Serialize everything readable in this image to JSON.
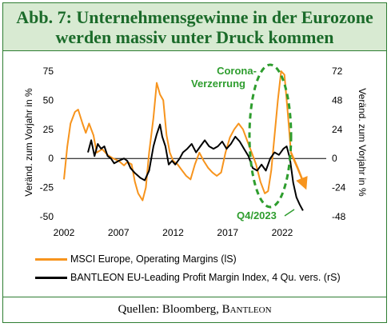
{
  "title": {
    "line1": "Abb. 7: Unternehmensgewinne in der Eurozone",
    "line2": "werden massiv unter Druck kommen"
  },
  "footer": {
    "prefix": "Quellen: Bloomberg, ",
    "brand": "Bantleon"
  },
  "chart_data": {
    "type": "line",
    "ylabel": "Veränd. zum Vorjahr in %",
    "y2label": "Veränd. zum Vorjahr in %",
    "ylim": [
      -50,
      75
    ],
    "y2lim": [
      -48,
      72
    ],
    "xlim": [
      2002,
      2024.5
    ],
    "y_ticks": [
      {
        "value": 75,
        "label": "75"
      },
      {
        "value": 50,
        "label": "50"
      },
      {
        "value": 25,
        "label": "25"
      },
      {
        "value": 0,
        "label": "0"
      },
      {
        "value": -25,
        "label": "-25"
      },
      {
        "value": -50,
        "label": "-50"
      }
    ],
    "y2_ticks": [
      {
        "value": 72,
        "label": "72"
      },
      {
        "value": 48,
        "label": "48"
      },
      {
        "value": 24,
        "label": "24"
      },
      {
        "value": 0,
        "label": "0"
      },
      {
        "value": -24,
        "label": "-24"
      },
      {
        "value": -48,
        "label": "-48"
      }
    ],
    "x_ticks": [
      {
        "value": 2002,
        "label": "2002"
      },
      {
        "value": 2007,
        "label": "2007"
      },
      {
        "value": 2012,
        "label": "2012"
      },
      {
        "value": 2017,
        "label": "2017"
      },
      {
        "value": 2022,
        "label": "2022"
      }
    ],
    "series": [
      {
        "name": "MSCI Europe, Operating Margins (lS)",
        "axis": "left",
        "color": "#f7941d",
        "points": [
          [
            2002.0,
            -18
          ],
          [
            2002.3,
            10
          ],
          [
            2002.6,
            30
          ],
          [
            2003.0,
            40
          ],
          [
            2003.3,
            42
          ],
          [
            2003.7,
            30
          ],
          [
            2004.0,
            22
          ],
          [
            2004.3,
            30
          ],
          [
            2004.7,
            20
          ],
          [
            2005.0,
            5
          ],
          [
            2005.5,
            8
          ],
          [
            2006.0,
            3
          ],
          [
            2006.5,
            0
          ],
          [
            2007.0,
            -2
          ],
          [
            2007.5,
            -6
          ],
          [
            2007.8,
            -3
          ],
          [
            2008.2,
            -5
          ],
          [
            2008.5,
            -20
          ],
          [
            2008.8,
            -30
          ],
          [
            2009.2,
            -36
          ],
          [
            2009.5,
            -25
          ],
          [
            2009.8,
            5
          ],
          [
            2010.2,
            35
          ],
          [
            2010.5,
            65
          ],
          [
            2010.8,
            55
          ],
          [
            2011.1,
            50
          ],
          [
            2011.4,
            20
          ],
          [
            2011.7,
            5
          ],
          [
            2012.0,
            -2
          ],
          [
            2012.4,
            -5
          ],
          [
            2012.8,
            -10
          ],
          [
            2013.2,
            -15
          ],
          [
            2013.6,
            -18
          ],
          [
            2014.0,
            -5
          ],
          [
            2014.4,
            5
          ],
          [
            2014.8,
            -2
          ],
          [
            2015.2,
            -8
          ],
          [
            2015.6,
            -12
          ],
          [
            2016.0,
            -15
          ],
          [
            2016.4,
            -12
          ],
          [
            2016.8,
            5
          ],
          [
            2017.2,
            18
          ],
          [
            2017.6,
            25
          ],
          [
            2018.0,
            30
          ],
          [
            2018.4,
            25
          ],
          [
            2018.8,
            15
          ],
          [
            2019.2,
            5
          ],
          [
            2019.6,
            -5
          ],
          [
            2020.0,
            -20
          ],
          [
            2020.4,
            -30
          ],
          [
            2020.7,
            -28
          ],
          [
            2021.0,
            -10
          ],
          [
            2021.3,
            20
          ],
          [
            2021.6,
            50
          ],
          [
            2021.9,
            75
          ],
          [
            2022.2,
            72
          ],
          [
            2022.5,
            40
          ],
          [
            2022.8,
            5
          ]
        ]
      },
      {
        "name": "BANTLEON EU-Leading Profit Margin Index, 4 Qu. vers. (rS)",
        "axis": "right",
        "color": "#000000",
        "points": [
          [
            2004.2,
            5
          ],
          [
            2004.5,
            15
          ],
          [
            2004.8,
            2
          ],
          [
            2005.1,
            12
          ],
          [
            2005.4,
            8
          ],
          [
            2005.7,
            10
          ],
          [
            2006.0,
            2
          ],
          [
            2006.3,
            0
          ],
          [
            2006.6,
            -4
          ],
          [
            2007.0,
            -2
          ],
          [
            2007.5,
            0
          ],
          [
            2007.8,
            -2
          ],
          [
            2008.1,
            -8
          ],
          [
            2008.5,
            -12
          ],
          [
            2009.0,
            -16
          ],
          [
            2009.4,
            -18
          ],
          [
            2009.8,
            -10
          ],
          [
            2010.2,
            10
          ],
          [
            2010.5,
            20
          ],
          [
            2010.8,
            28
          ],
          [
            2011.0,
            18
          ],
          [
            2011.3,
            10
          ],
          [
            2011.6,
            -5
          ],
          [
            2011.9,
            -2
          ],
          [
            2012.2,
            -5
          ],
          [
            2012.6,
            0
          ],
          [
            2012.9,
            5
          ],
          [
            2013.3,
            8
          ],
          [
            2013.7,
            12
          ],
          [
            2014.1,
            5
          ],
          [
            2014.5,
            10
          ],
          [
            2014.9,
            15
          ],
          [
            2015.3,
            10
          ],
          [
            2015.7,
            8
          ],
          [
            2016.1,
            10
          ],
          [
            2016.5,
            14
          ],
          [
            2016.9,
            8
          ],
          [
            2017.3,
            12
          ],
          [
            2017.7,
            18
          ],
          [
            2018.1,
            14
          ],
          [
            2018.5,
            8
          ],
          [
            2018.9,
            2
          ],
          [
            2019.3,
            -8
          ],
          [
            2019.7,
            -10
          ],
          [
            2020.1,
            -5
          ],
          [
            2020.5,
            -10
          ],
          [
            2020.9,
            0
          ],
          [
            2021.3,
            5
          ],
          [
            2021.7,
            3
          ],
          [
            2022.1,
            8
          ],
          [
            2022.4,
            10
          ],
          [
            2022.7,
            0
          ],
          [
            2023.0,
            -20
          ],
          [
            2023.3,
            -32
          ],
          [
            2023.6,
            -38
          ],
          [
            2023.9,
            -43
          ]
        ]
      },
      {
        "name": "MSCI Europe forecast",
        "axis": "left",
        "color": "#f7941d",
        "arrow": true,
        "points": [
          [
            2022.8,
            5
          ],
          [
            2023.4,
            -8
          ],
          [
            2024.0,
            -22
          ]
        ]
      }
    ],
    "annotations": [
      {
        "text_line1": "Corona-",
        "text_line2": "Verzerrung"
      },
      {
        "text": "Q4/2023"
      }
    ]
  }
}
